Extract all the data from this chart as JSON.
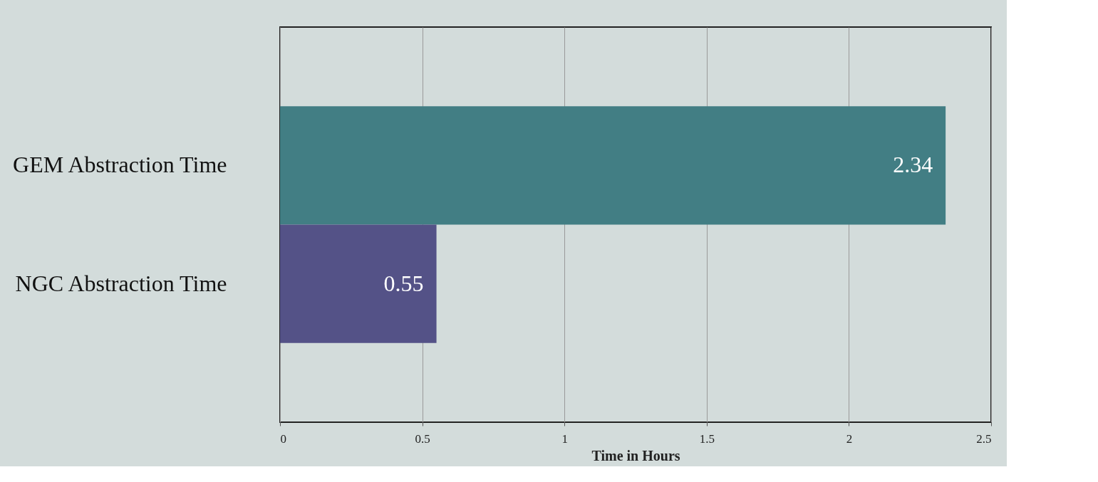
{
  "chart_data": {
    "type": "bar",
    "orientation": "horizontal",
    "xlabel": "Time in Hours",
    "categories": [
      "GEM Abstraction Time",
      "NGC Abstraction Time"
    ],
    "values": [
      2.34,
      0.55
    ],
    "colors": [
      "#427e84",
      "#545287"
    ],
    "xlim": [
      0,
      2.5
    ],
    "xticks": [
      0,
      0.5,
      1,
      1.5,
      2,
      2.5
    ],
    "grid": "x",
    "data_labels": true
  }
}
